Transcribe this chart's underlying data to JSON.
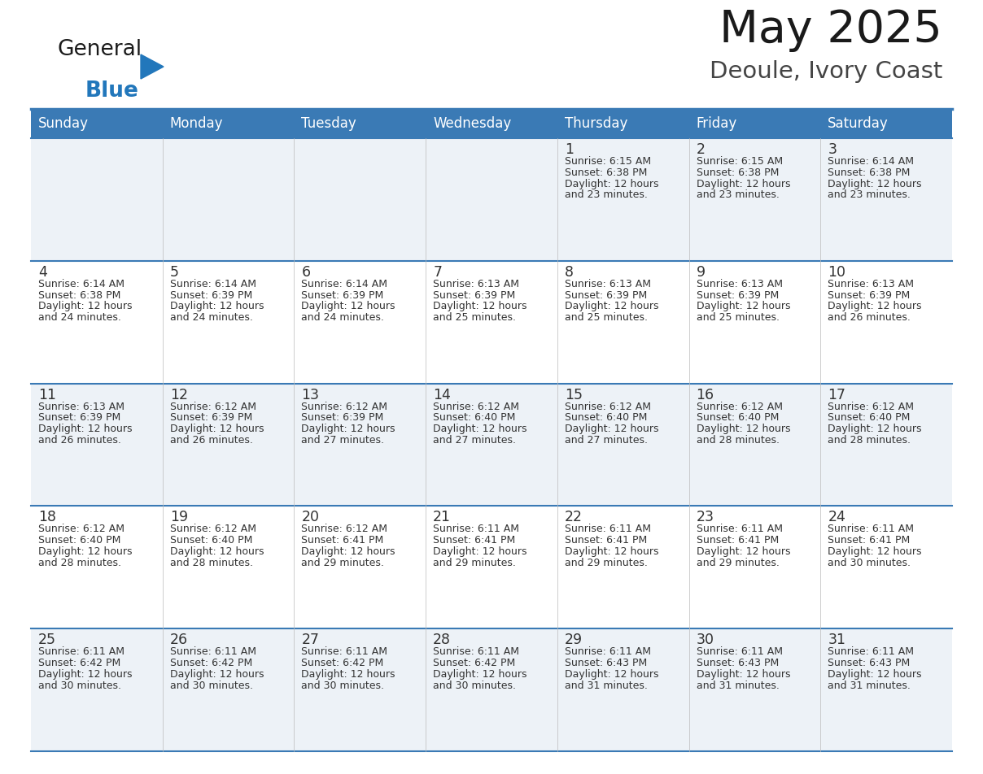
{
  "title": "May 2025",
  "subtitle": "Deoule, Ivory Coast",
  "days_of_week": [
    "Sunday",
    "Monday",
    "Tuesday",
    "Wednesday",
    "Thursday",
    "Friday",
    "Saturday"
  ],
  "header_bg": "#3a7ab5",
  "header_text": "#ffffff",
  "row_bg_odd": "#edf2f7",
  "row_bg_even": "#ffffff",
  "cell_border": "#3a7ab5",
  "day_num_color": "#333333",
  "info_text_color": "#333333",
  "title_color": "#1a1a1a",
  "subtitle_color": "#444444",
  "logo_general_color": "#1a1a1a",
  "logo_blue_color": "#2277bb",
  "calendar": [
    [
      null,
      null,
      null,
      null,
      {
        "day": 1,
        "sunrise": "6:15 AM",
        "sunset": "6:38 PM",
        "daylight_hours": "12 hours",
        "daylight_min": "23 minutes"
      },
      {
        "day": 2,
        "sunrise": "6:15 AM",
        "sunset": "6:38 PM",
        "daylight_hours": "12 hours",
        "daylight_min": "23 minutes"
      },
      {
        "day": 3,
        "sunrise": "6:14 AM",
        "sunset": "6:38 PM",
        "daylight_hours": "12 hours",
        "daylight_min": "23 minutes"
      }
    ],
    [
      {
        "day": 4,
        "sunrise": "6:14 AM",
        "sunset": "6:38 PM",
        "daylight_hours": "12 hours",
        "daylight_min": "24 minutes"
      },
      {
        "day": 5,
        "sunrise": "6:14 AM",
        "sunset": "6:39 PM",
        "daylight_hours": "12 hours",
        "daylight_min": "24 minutes"
      },
      {
        "day": 6,
        "sunrise": "6:14 AM",
        "sunset": "6:39 PM",
        "daylight_hours": "12 hours",
        "daylight_min": "24 minutes"
      },
      {
        "day": 7,
        "sunrise": "6:13 AM",
        "sunset": "6:39 PM",
        "daylight_hours": "12 hours",
        "daylight_min": "25 minutes"
      },
      {
        "day": 8,
        "sunrise": "6:13 AM",
        "sunset": "6:39 PM",
        "daylight_hours": "12 hours",
        "daylight_min": "25 minutes"
      },
      {
        "day": 9,
        "sunrise": "6:13 AM",
        "sunset": "6:39 PM",
        "daylight_hours": "12 hours",
        "daylight_min": "25 minutes"
      },
      {
        "day": 10,
        "sunrise": "6:13 AM",
        "sunset": "6:39 PM",
        "daylight_hours": "12 hours",
        "daylight_min": "26 minutes"
      }
    ],
    [
      {
        "day": 11,
        "sunrise": "6:13 AM",
        "sunset": "6:39 PM",
        "daylight_hours": "12 hours",
        "daylight_min": "26 minutes"
      },
      {
        "day": 12,
        "sunrise": "6:12 AM",
        "sunset": "6:39 PM",
        "daylight_hours": "12 hours",
        "daylight_min": "26 minutes"
      },
      {
        "day": 13,
        "sunrise": "6:12 AM",
        "sunset": "6:39 PM",
        "daylight_hours": "12 hours",
        "daylight_min": "27 minutes"
      },
      {
        "day": 14,
        "sunrise": "6:12 AM",
        "sunset": "6:40 PM",
        "daylight_hours": "12 hours",
        "daylight_min": "27 minutes"
      },
      {
        "day": 15,
        "sunrise": "6:12 AM",
        "sunset": "6:40 PM",
        "daylight_hours": "12 hours",
        "daylight_min": "27 minutes"
      },
      {
        "day": 16,
        "sunrise": "6:12 AM",
        "sunset": "6:40 PM",
        "daylight_hours": "12 hours",
        "daylight_min": "28 minutes"
      },
      {
        "day": 17,
        "sunrise": "6:12 AM",
        "sunset": "6:40 PM",
        "daylight_hours": "12 hours",
        "daylight_min": "28 minutes"
      }
    ],
    [
      {
        "day": 18,
        "sunrise": "6:12 AM",
        "sunset": "6:40 PM",
        "daylight_hours": "12 hours",
        "daylight_min": "28 minutes"
      },
      {
        "day": 19,
        "sunrise": "6:12 AM",
        "sunset": "6:40 PM",
        "daylight_hours": "12 hours",
        "daylight_min": "28 minutes"
      },
      {
        "day": 20,
        "sunrise": "6:12 AM",
        "sunset": "6:41 PM",
        "daylight_hours": "12 hours",
        "daylight_min": "29 minutes"
      },
      {
        "day": 21,
        "sunrise": "6:11 AM",
        "sunset": "6:41 PM",
        "daylight_hours": "12 hours",
        "daylight_min": "29 minutes"
      },
      {
        "day": 22,
        "sunrise": "6:11 AM",
        "sunset": "6:41 PM",
        "daylight_hours": "12 hours",
        "daylight_min": "29 minutes"
      },
      {
        "day": 23,
        "sunrise": "6:11 AM",
        "sunset": "6:41 PM",
        "daylight_hours": "12 hours",
        "daylight_min": "29 minutes"
      },
      {
        "day": 24,
        "sunrise": "6:11 AM",
        "sunset": "6:41 PM",
        "daylight_hours": "12 hours",
        "daylight_min": "30 minutes"
      }
    ],
    [
      {
        "day": 25,
        "sunrise": "6:11 AM",
        "sunset": "6:42 PM",
        "daylight_hours": "12 hours",
        "daylight_min": "30 minutes"
      },
      {
        "day": 26,
        "sunrise": "6:11 AM",
        "sunset": "6:42 PM",
        "daylight_hours": "12 hours",
        "daylight_min": "30 minutes"
      },
      {
        "day": 27,
        "sunrise": "6:11 AM",
        "sunset": "6:42 PM",
        "daylight_hours": "12 hours",
        "daylight_min": "30 minutes"
      },
      {
        "day": 28,
        "sunrise": "6:11 AM",
        "sunset": "6:42 PM",
        "daylight_hours": "12 hours",
        "daylight_min": "30 minutes"
      },
      {
        "day": 29,
        "sunrise": "6:11 AM",
        "sunset": "6:43 PM",
        "daylight_hours": "12 hours",
        "daylight_min": "31 minutes"
      },
      {
        "day": 30,
        "sunrise": "6:11 AM",
        "sunset": "6:43 PM",
        "daylight_hours": "12 hours",
        "daylight_min": "31 minutes"
      },
      {
        "day": 31,
        "sunrise": "6:11 AM",
        "sunset": "6:43 PM",
        "daylight_hours": "12 hours",
        "daylight_min": "31 minutes"
      }
    ]
  ]
}
